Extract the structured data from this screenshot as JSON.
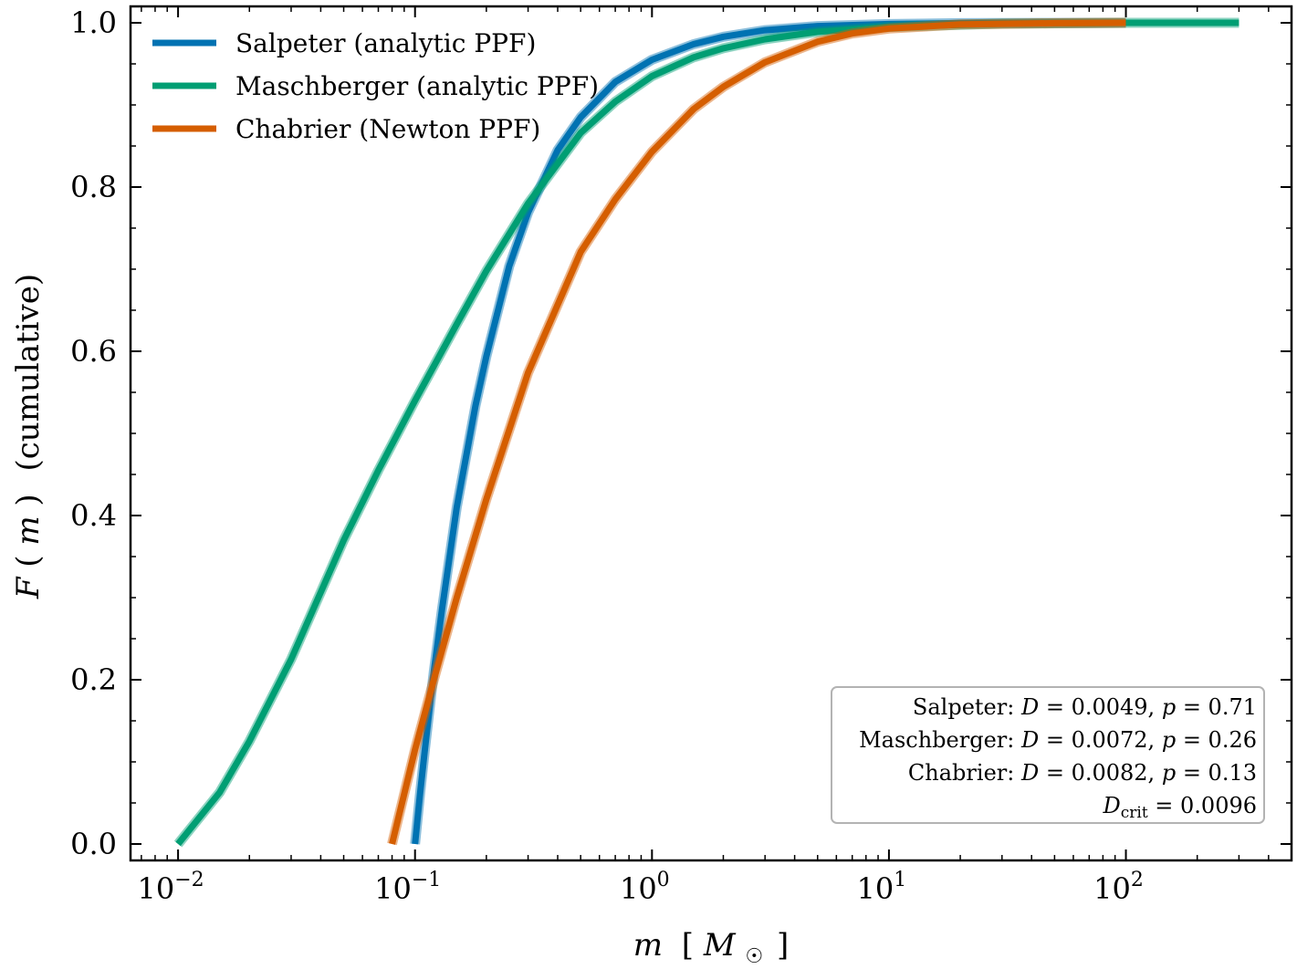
{
  "chart_data": {
    "type": "line",
    "xscale": "log",
    "xlim": [
      0.0063,
      500
    ],
    "ylim": [
      -0.02,
      1.02
    ],
    "grid": false,
    "legend_position": "top-left",
    "xlabel_parts": [
      "m",
      "[",
      "M",
      "☉",
      "]"
    ],
    "ylabel_parts": [
      "F",
      "(",
      "m",
      ")",
      "(cumulative)"
    ],
    "x_ticks": [
      {
        "value": 0.01,
        "base": "10",
        "exp": "−2"
      },
      {
        "value": 0.1,
        "base": "10",
        "exp": "−1"
      },
      {
        "value": 1,
        "base": "10",
        "exp": "0"
      },
      {
        "value": 10,
        "base": "10",
        "exp": "1"
      },
      {
        "value": 100,
        "base": "10",
        "exp": "2"
      }
    ],
    "y_ticks": [
      {
        "value": 0.0,
        "label": "0.0"
      },
      {
        "value": 0.2,
        "label": "0.2"
      },
      {
        "value": 0.4,
        "label": "0.4"
      },
      {
        "value": 0.6,
        "label": "0.6"
      },
      {
        "value": 0.8,
        "label": "0.8"
      },
      {
        "value": 1.0,
        "label": "1.0"
      }
    ],
    "series": [
      {
        "name": "Salpeter (analytic PPF)",
        "color": "#0072B2",
        "x": [
          0.1,
          0.105,
          0.11,
          0.12,
          0.13,
          0.15,
          0.18,
          0.2,
          0.25,
          0.3,
          0.4,
          0.5,
          0.7,
          1.0,
          1.5,
          2.0,
          3.0,
          5.0,
          10,
          20,
          50,
          100
        ],
        "y": [
          0.0,
          0.061,
          0.115,
          0.21,
          0.286,
          0.41,
          0.534,
          0.594,
          0.704,
          0.769,
          0.845,
          0.885,
          0.928,
          0.955,
          0.974,
          0.983,
          0.991,
          0.996,
          0.9985,
          0.9995,
          0.9999,
          1.0
        ]
      },
      {
        "name": "Maschberger (analytic PPF)",
        "color": "#009E73",
        "x": [
          0.01,
          0.015,
          0.02,
          0.03,
          0.05,
          0.07,
          0.1,
          0.15,
          0.2,
          0.3,
          0.5,
          0.7,
          1.0,
          1.5,
          2.0,
          3.0,
          5.0,
          10,
          30,
          100,
          300
        ],
        "y": [
          0.0,
          0.063,
          0.125,
          0.225,
          0.37,
          0.455,
          0.54,
          0.633,
          0.698,
          0.78,
          0.866,
          0.904,
          0.935,
          0.958,
          0.969,
          0.98,
          0.989,
          0.995,
          0.999,
          1.0,
          1.0
        ]
      },
      {
        "name": "Chabrier (Newton PPF)",
        "color": "#D55E00",
        "x": [
          0.08,
          0.1,
          0.12,
          0.15,
          0.2,
          0.3,
          0.5,
          0.7,
          1.0,
          1.5,
          2.0,
          3.0,
          5.0,
          7.0,
          10,
          20,
          50,
          100
        ],
        "y": [
          0.0,
          0.115,
          0.2,
          0.3,
          0.42,
          0.574,
          0.721,
          0.785,
          0.843,
          0.895,
          0.922,
          0.952,
          0.977,
          0.987,
          0.993,
          0.998,
          0.9995,
          1.0
        ]
      }
    ],
    "annotation": {
      "lines": [
        {
          "prefix": "Salpeter: ",
          "d_sym": "D",
          "eq1": " = 0.0049, ",
          "p_sym": "p",
          "eq2": " = 0.71"
        },
        {
          "prefix": "Maschberger: ",
          "d_sym": "D",
          "eq1": " = 0.0072, ",
          "p_sym": "p",
          "eq2": " = 0.26"
        },
        {
          "prefix": "Chabrier: ",
          "d_sym": "D",
          "eq1": " = 0.0082, ",
          "p_sym": "p",
          "eq2": " = 0.13"
        }
      ],
      "dcrit": {
        "sym": "D",
        "sub": "crit",
        "eq": " = 0.0096"
      }
    }
  }
}
